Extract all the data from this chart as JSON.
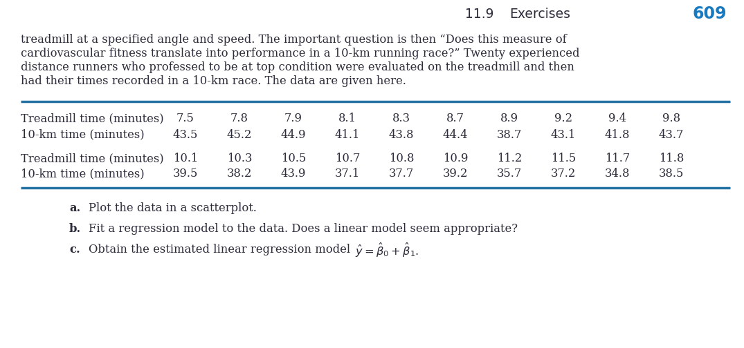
{
  "section_number": "11.9",
  "section_label": "Exercises",
  "page_num": "609",
  "body_text": [
    "treadmill at a specified angle and speed. The important question is then “Does this measure of",
    "cardiovascular fitness translate into performance in a 10-km running race?” Twenty experienced",
    "distance runners who professed to be at top condition were evaluated on the treadmill and then",
    "had their times recorded in a 10-km race. The data are given here."
  ],
  "table1_row1_label": "Treadmill time (minutes)",
  "table1_row1_values": [
    "7.5",
    "7.8",
    "7.9",
    "8.1",
    "8.3",
    "8.7",
    "8.9",
    "9.2",
    "9.4",
    "9.8"
  ],
  "table1_row2_label": "10-km time (minutes)",
  "table1_row2_values": [
    "43.5",
    "45.2",
    "44.9",
    "41.1",
    "43.8",
    "44.4",
    "38.7",
    "43.1",
    "41.8",
    "43.7"
  ],
  "table2_row1_label": "Treadmill time (minutes)",
  "table2_row1_values": [
    "10.1",
    "10.3",
    "10.5",
    "10.7",
    "10.8",
    "10.9",
    "11.2",
    "11.5",
    "11.7",
    "11.8"
  ],
  "table2_row2_label": "10-km time (minutes)",
  "table2_row2_values": [
    "39.5",
    "38.2",
    "43.9",
    "37.1",
    "37.7",
    "39.2",
    "35.7",
    "37.2",
    "34.8",
    "38.5"
  ],
  "item_a_label": "a.",
  "item_a_text": "Plot the data in a scatterplot.",
  "item_b_label": "b.",
  "item_b_text": "Fit a regression model to the data. Does a linear model seem appropriate?",
  "item_c_label": "c.",
  "item_c_text": "Obtain the estimated linear regression model ",
  "item_c_math": "$\\hat{y} = \\hat{\\beta}_0 + \\hat{\\beta}_1$.",
  "text_color": "#2c2c3a",
  "page_num_blue": "#1a7abf",
  "rule_color": "#2471a3",
  "bg_color": "#ffffff",
  "body_fontsize": 11.8,
  "header_fontsize": 13.5,
  "table_fontsize": 11.8,
  "item_fontsize": 11.8
}
